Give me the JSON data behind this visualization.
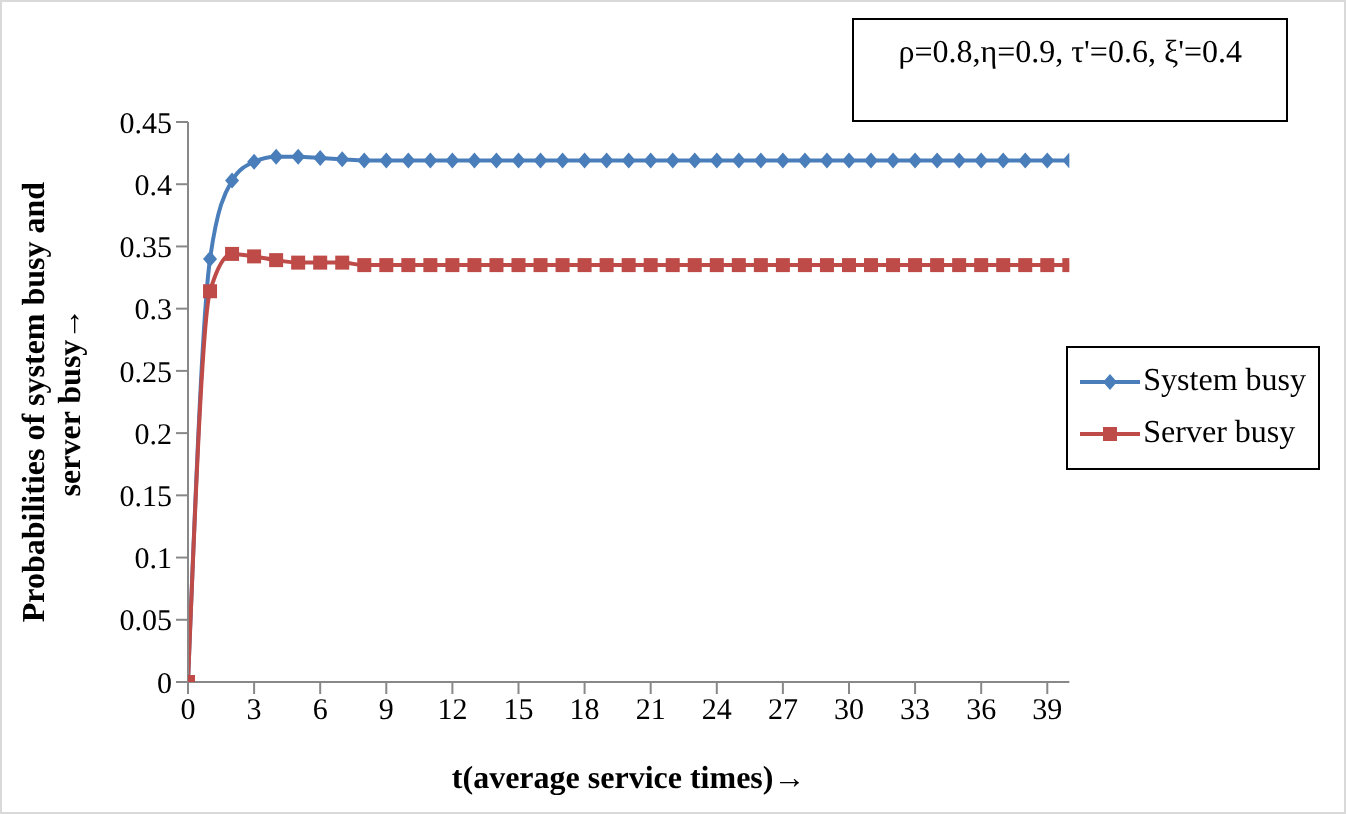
{
  "chart_data": {
    "type": "line",
    "xlabel": "t(average service times)→",
    "ylabel": "Probabilities of system busy and\nserver busy→",
    "annotations": [
      "ρ=0.8,η=0.9, τ'=0.6, ξ'=0.4"
    ],
    "x": [
      0,
      1,
      2,
      3,
      4,
      5,
      6,
      7,
      8,
      9,
      10,
      11,
      12,
      13,
      14,
      15,
      16,
      17,
      18,
      19,
      20,
      21,
      22,
      23,
      24,
      25,
      26,
      27,
      28,
      29,
      30,
      31,
      32,
      33,
      34,
      35,
      36,
      37,
      38,
      39,
      40
    ],
    "series": [
      {
        "name": "System busy",
        "color": "#4a7ebb",
        "marker": "diamond",
        "values": [
          0,
          0.34,
          0.403,
          0.418,
          0.422,
          0.422,
          0.421,
          0.42,
          0.419,
          0.419,
          0.419,
          0.419,
          0.419,
          0.419,
          0.419,
          0.419,
          0.419,
          0.419,
          0.419,
          0.419,
          0.419,
          0.419,
          0.419,
          0.419,
          0.419,
          0.419,
          0.419,
          0.419,
          0.419,
          0.419,
          0.419,
          0.419,
          0.419,
          0.419,
          0.419,
          0.419,
          0.419,
          0.419,
          0.419,
          0.419,
          0.419
        ]
      },
      {
        "name": "Server busy",
        "color": "#be4b48",
        "marker": "square",
        "values": [
          0,
          0.314,
          0.344,
          0.342,
          0.339,
          0.337,
          0.337,
          0.337,
          0.335,
          0.335,
          0.335,
          0.335,
          0.335,
          0.335,
          0.335,
          0.335,
          0.335,
          0.335,
          0.335,
          0.335,
          0.335,
          0.335,
          0.335,
          0.335,
          0.335,
          0.335,
          0.335,
          0.335,
          0.335,
          0.335,
          0.335,
          0.335,
          0.335,
          0.335,
          0.335,
          0.335,
          0.335,
          0.335,
          0.335,
          0.335,
          0.335
        ]
      }
    ],
    "xlim": [
      0,
      40
    ],
    "xticks": [
      0,
      3,
      6,
      9,
      12,
      15,
      18,
      21,
      24,
      27,
      30,
      33,
      36,
      39
    ],
    "ylim": [
      0,
      0.45
    ],
    "yticks": [
      0,
      0.05,
      0.1,
      0.15,
      0.2,
      0.25,
      0.3,
      0.35,
      0.4,
      0.45
    ],
    "grid": false,
    "legend": "right",
    "line_style": "solid"
  }
}
